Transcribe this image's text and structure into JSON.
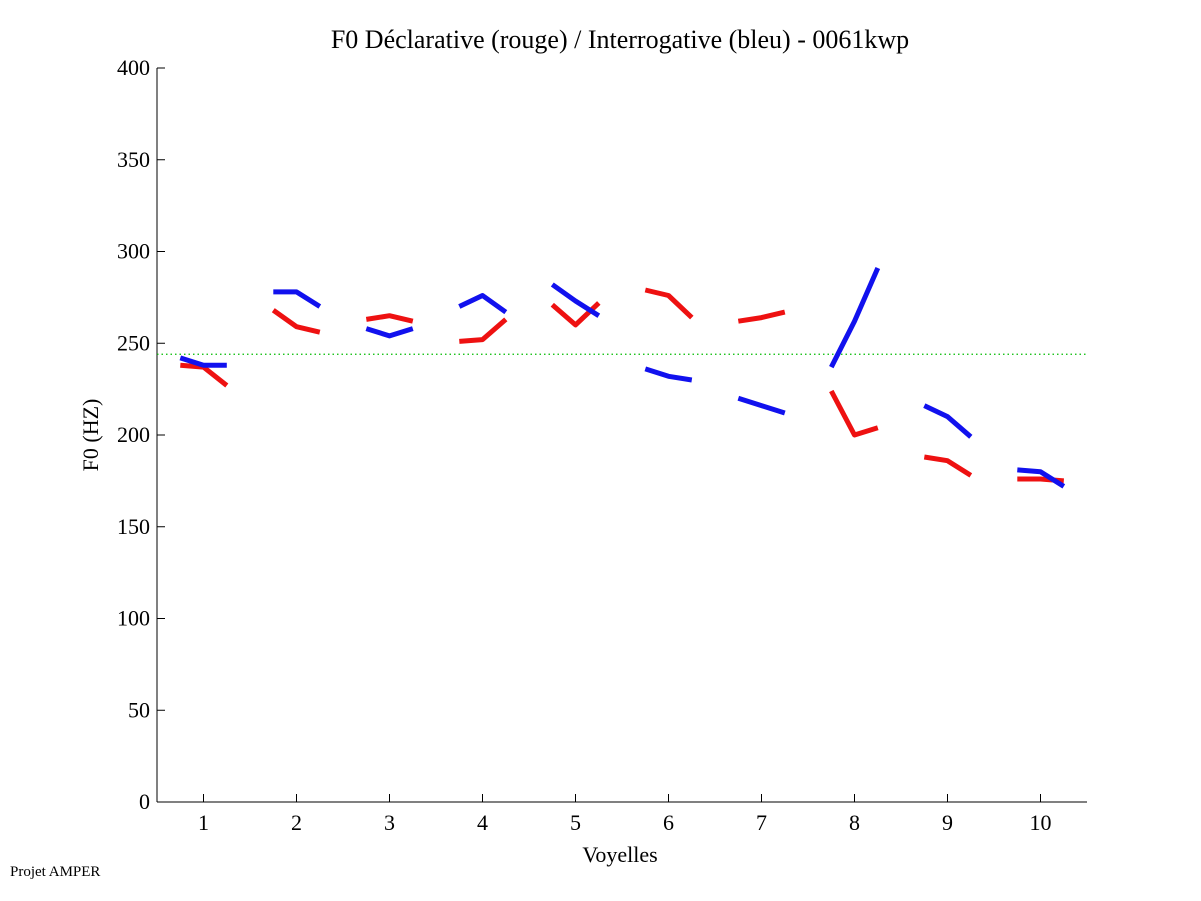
{
  "footer": "Projet AMPER",
  "chart_data": {
    "type": "line",
    "title": "F0 Déclarative (rouge) / Interrogative (bleu) - 0061kwp",
    "xlabel": "Voyelles",
    "ylabel": "F0 (HZ)",
    "xlim": [
      0.5,
      10.5
    ],
    "ylim": [
      0,
      400
    ],
    "xticks": [
      "1",
      "2",
      "3",
      "4",
      "5",
      "6",
      "7",
      "8",
      "9",
      "10"
    ],
    "yticks": [
      "0",
      "50",
      "100",
      "150",
      "200",
      "250",
      "300",
      "350",
      "400"
    ],
    "reference_line": {
      "y": 244,
      "color": "#00bb00",
      "style": "dotted"
    },
    "series": [
      {
        "name": "Déclarative",
        "color": "#ee1111",
        "segments": [
          {
            "x": [
              0.75,
              1.0,
              1.25
            ],
            "y": [
              238,
              237,
              227
            ]
          },
          {
            "x": [
              1.75,
              2.0,
              2.25
            ],
            "y": [
              268,
              259,
              256
            ]
          },
          {
            "x": [
              2.75,
              3.0,
              3.25
            ],
            "y": [
              263,
              265,
              262
            ]
          },
          {
            "x": [
              3.75,
              4.0,
              4.25
            ],
            "y": [
              251,
              252,
              263
            ]
          },
          {
            "x": [
              4.75,
              5.0,
              5.25
            ],
            "y": [
              271,
              260,
              272
            ]
          },
          {
            "x": [
              5.75,
              6.0,
              6.25
            ],
            "y": [
              279,
              276,
              264
            ]
          },
          {
            "x": [
              6.75,
              7.0,
              7.25
            ],
            "y": [
              262,
              264,
              267
            ]
          },
          {
            "x": [
              7.75,
              8.0,
              8.25
            ],
            "y": [
              224,
              200,
              204
            ]
          },
          {
            "x": [
              8.75,
              9.0,
              9.25
            ],
            "y": [
              188,
              186,
              178
            ]
          },
          {
            "x": [
              9.75,
              10.0,
              10.25
            ],
            "y": [
              176,
              176,
              175
            ]
          }
        ]
      },
      {
        "name": "Interrogative",
        "color": "#1111ee",
        "segments": [
          {
            "x": [
              0.75,
              1.0,
              1.25
            ],
            "y": [
              242,
              238,
              238
            ]
          },
          {
            "x": [
              1.75,
              2.0,
              2.25
            ],
            "y": [
              278,
              278,
              270
            ]
          },
          {
            "x": [
              2.75,
              3.0,
              3.25
            ],
            "y": [
              258,
              254,
              258
            ]
          },
          {
            "x": [
              3.75,
              4.0,
              4.25
            ],
            "y": [
              270,
              276,
              267
            ]
          },
          {
            "x": [
              4.75,
              5.0,
              5.25
            ],
            "y": [
              282,
              273,
              265
            ]
          },
          {
            "x": [
              5.75,
              6.0,
              6.25
            ],
            "y": [
              236,
              232,
              230
            ]
          },
          {
            "x": [
              6.75,
              7.0,
              7.25
            ],
            "y": [
              220,
              216,
              212
            ]
          },
          {
            "x": [
              7.75,
              8.0,
              8.25
            ],
            "y": [
              237,
              262,
              291
            ]
          },
          {
            "x": [
              8.75,
              9.0,
              9.25
            ],
            "y": [
              216,
              210,
              199
            ]
          },
          {
            "x": [
              9.75,
              10.0,
              10.25
            ],
            "y": [
              181,
              180,
              172
            ]
          }
        ]
      }
    ]
  }
}
